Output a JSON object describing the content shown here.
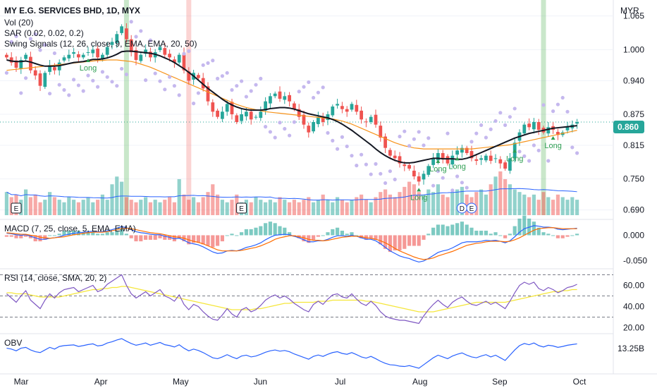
{
  "legend": {
    "title": "MY E.G. SERVICES BHD, 1D, MYX",
    "vol": "Vol (20)",
    "sar": "SAR (0.02, 0.02, 0.2)",
    "swing": "Swing Signals (12, 26, close, 9, EMA, EMA, 20, 50)",
    "macd": "MACD (7, 25, close, 5, EMA, EMA)",
    "rsi": "RSI (14, close, SMA, 20, 2)",
    "obv": "OBV"
  },
  "currency": "MYR",
  "last_price_tag": "0.860",
  "markers": {
    "earnings": "E",
    "dividend": "D",
    "long": "Long"
  },
  "colors": {
    "up": "#26a69a",
    "down": "#ef5350",
    "ema20": "#131722",
    "ema50": "#f7931a",
    "sar": "#c5b8ee",
    "vol_ma": "#2962ff",
    "macd": "#2962ff",
    "signal": "#ff6d00",
    "rsi": "#7e57c2",
    "rsi_ma": "#f5e63b",
    "obv": "#2962ff",
    "long": "#2e9e52",
    "green_band": "#4caf50",
    "red_band": "#ef5350"
  },
  "chart_data": {
    "type": "candlestick",
    "x_axis_labels": [
      "Mar",
      "Apr",
      "May",
      "Jun",
      "Jul",
      "Aug",
      "Sep",
      "Oct"
    ],
    "price_ticks": [
      "1.065",
      "1.000",
      "0.940",
      "0.875",
      "0.815",
      "0.750",
      "0.690"
    ],
    "price_range": [
      0.68,
      1.085
    ],
    "last_price": 0.86,
    "close_series": [
      0.985,
      0.975,
      0.965,
      0.98,
      0.99,
      0.96,
      0.95,
      0.93,
      0.955,
      0.97,
      0.96,
      0.975,
      0.985,
      0.99,
      0.995,
      0.985,
      0.99,
      0.995,
      1.0,
      0.985,
      0.99,
      1.005,
      1.015,
      1.03,
      1.045,
      1.02,
      0.995,
      0.98,
      0.99,
      1.0,
      0.985,
      0.995,
      1.005,
      0.99,
      0.985,
      0.975,
      0.99,
      0.96,
      0.94,
      0.955,
      0.945,
      0.925,
      0.9,
      0.88,
      0.87,
      0.88,
      0.895,
      0.875,
      0.86,
      0.875,
      0.88,
      0.865,
      0.87,
      0.88,
      0.9,
      0.91,
      0.915,
      0.905,
      0.91,
      0.9,
      0.885,
      0.87,
      0.855,
      0.84,
      0.86,
      0.87,
      0.86,
      0.875,
      0.89,
      0.895,
      0.885,
      0.88,
      0.895,
      0.88,
      0.865,
      0.86,
      0.87,
      0.855,
      0.83,
      0.81,
      0.795,
      0.79,
      0.78,
      0.775,
      0.77,
      0.755,
      0.745,
      0.76,
      0.775,
      0.79,
      0.8,
      0.79,
      0.78,
      0.795,
      0.805,
      0.81,
      0.8,
      0.79,
      0.785,
      0.79,
      0.795,
      0.785,
      0.79,
      0.78,
      0.77,
      0.79,
      0.82,
      0.84,
      0.855,
      0.85,
      0.86,
      0.845,
      0.84,
      0.85,
      0.845,
      0.835,
      0.84,
      0.85,
      0.855,
      0.86
    ],
    "ema20": [
      0.98,
      0.978,
      0.977,
      0.977,
      0.978,
      0.976,
      0.973,
      0.97,
      0.968,
      0.968,
      0.968,
      0.969,
      0.971,
      0.973,
      0.975,
      0.976,
      0.977,
      0.979,
      0.981,
      0.981,
      0.982,
      0.984,
      0.987,
      0.991,
      0.996,
      0.997,
      0.997,
      0.996,
      0.995,
      0.994,
      0.993,
      0.991,
      0.988,
      0.984,
      0.98,
      0.975,
      0.969,
      0.963,
      0.956,
      0.949,
      0.941,
      0.933,
      0.925,
      0.918,
      0.911,
      0.904,
      0.898,
      0.893,
      0.889,
      0.886,
      0.884,
      0.883,
      0.883,
      0.883,
      0.884,
      0.886,
      0.887,
      0.888,
      0.888,
      0.887,
      0.885,
      0.882,
      0.879,
      0.876,
      0.874,
      0.872,
      0.87,
      0.868,
      0.865,
      0.861,
      0.856,
      0.85,
      0.844,
      0.837,
      0.83,
      0.823,
      0.816,
      0.808,
      0.801,
      0.795,
      0.79,
      0.786,
      0.783,
      0.781,
      0.781,
      0.782,
      0.784,
      0.786,
      0.788,
      0.79,
      0.79,
      0.789,
      0.789,
      0.789,
      0.788,
      0.788,
      0.79,
      0.793,
      0.797,
      0.801,
      0.805,
      0.809,
      0.813,
      0.817,
      0.821,
      0.825,
      0.829,
      0.832,
      0.835,
      0.838,
      0.84,
      0.842,
      0.844,
      0.846,
      0.848,
      0.849,
      0.85,
      0.851,
      0.852,
      0.853
    ],
    "ema50": [
      0.96,
      0.961,
      0.962,
      0.963,
      0.964,
      0.965,
      0.966,
      0.967,
      0.968,
      0.969,
      0.97,
      0.971,
      0.972,
      0.973,
      0.974,
      0.975,
      0.976,
      0.977,
      0.978,
      0.979,
      0.979,
      0.98,
      0.98,
      0.98,
      0.979,
      0.978,
      0.977,
      0.975,
      0.972,
      0.969,
      0.966,
      0.962,
      0.958,
      0.954,
      0.95,
      0.946,
      0.942,
      0.938,
      0.934,
      0.93,
      0.926,
      0.922,
      0.918,
      0.914,
      0.91,
      0.906,
      0.902,
      0.898,
      0.894,
      0.891,
      0.888,
      0.886,
      0.884,
      0.882,
      0.88,
      0.879,
      0.878,
      0.877,
      0.876,
      0.875,
      0.874,
      0.873,
      0.872,
      0.871,
      0.87,
      0.869,
      0.868,
      0.867,
      0.866,
      0.864,
      0.862,
      0.859,
      0.856,
      0.852,
      0.848,
      0.844,
      0.84,
      0.836,
      0.832,
      0.828,
      0.824,
      0.82,
      0.817,
      0.814,
      0.812,
      0.81,
      0.809,
      0.808,
      0.808,
      0.808,
      0.808,
      0.808,
      0.808,
      0.808,
      0.808,
      0.808,
      0.808,
      0.808,
      0.809,
      0.81,
      0.811,
      0.812,
      0.813,
      0.814,
      0.815,
      0.816,
      0.818,
      0.82,
      0.822,
      0.824,
      0.826,
      0.828,
      0.83,
      0.832,
      0.834,
      0.836,
      0.838,
      0.84,
      0.842,
      0.844
    ],
    "volume": [
      0.9,
      0.7,
      0.8,
      0.6,
      1.0,
      0.7,
      0.8,
      0.5,
      0.6,
      0.9,
      0.7,
      0.6,
      0.5,
      0.7,
      0.6,
      0.5,
      0.6,
      0.7,
      0.5,
      0.6,
      0.8,
      0.6,
      1.2,
      1.5,
      1.3,
      0.7,
      0.6,
      0.5,
      0.6,
      0.7,
      0.5,
      0.6,
      0.5,
      0.6,
      0.7,
      0.5,
      1.4,
      0.8,
      0.6,
      0.7,
      0.5,
      0.7,
      0.9,
      1.2,
      0.8,
      0.6,
      0.5,
      0.6,
      0.8,
      0.5,
      0.6,
      0.5,
      0.7,
      0.6,
      0.5,
      0.6,
      0.5,
      0.7,
      0.6,
      0.5,
      0.6,
      0.5,
      0.6,
      0.7,
      0.5,
      0.6,
      0.8,
      0.6,
      0.5,
      0.7,
      0.6,
      0.5,
      0.6,
      0.7,
      0.8,
      0.6,
      0.5,
      0.7,
      0.9,
      1.0,
      0.8,
      0.7,
      0.9,
      1.1,
      1.3,
      1.2,
      0.9,
      0.8,
      1.0,
      0.9,
      1.2,
      0.8,
      0.7,
      0.9,
      1.0,
      1.1,
      0.8,
      0.7,
      0.9,
      1.0,
      0.8,
      1.2,
      1.5,
      1.7,
      1.4,
      1.2,
      1.0,
      0.9,
      0.8,
      0.7,
      0.8,
      0.6,
      0.9,
      0.7,
      0.6,
      0.8,
      0.7,
      0.6,
      0.7,
      0.6
    ],
    "macd_ticks": [
      "0.000",
      "-0.050"
    ],
    "macd_range": [
      -0.065,
      0.03
    ],
    "macd": [
      0.004,
      0.003,
      0.001,
      0.0,
      0.001,
      -0.002,
      -0.005,
      -0.008,
      -0.008,
      -0.006,
      -0.005,
      -0.003,
      0.0,
      0.002,
      0.004,
      0.005,
      0.006,
      0.007,
      0.008,
      0.007,
      0.007,
      0.009,
      0.011,
      0.014,
      0.017,
      0.015,
      0.011,
      0.007,
      0.005,
      0.004,
      0.002,
      0.001,
      0.001,
      -0.002,
      -0.004,
      -0.007,
      -0.006,
      -0.01,
      -0.015,
      -0.017,
      -0.019,
      -0.023,
      -0.028,
      -0.033,
      -0.036,
      -0.035,
      -0.031,
      -0.03,
      -0.031,
      -0.028,
      -0.024,
      -0.022,
      -0.019,
      -0.015,
      -0.009,
      -0.004,
      0.0,
      0.001,
      0.002,
      0.001,
      -0.002,
      -0.005,
      -0.009,
      -0.013,
      -0.013,
      -0.011,
      -0.011,
      -0.008,
      -0.004,
      -0.001,
      -0.001,
      -0.002,
      0.0,
      -0.002,
      -0.005,
      -0.008,
      -0.008,
      -0.011,
      -0.017,
      -0.024,
      -0.031,
      -0.036,
      -0.041,
      -0.044,
      -0.046,
      -0.05,
      -0.053,
      -0.051,
      -0.046,
      -0.04,
      -0.034,
      -0.031,
      -0.029,
      -0.025,
      -0.02,
      -0.015,
      -0.013,
      -0.013,
      -0.013,
      -0.012,
      -0.01,
      -0.011,
      -0.01,
      -0.012,
      -0.015,
      -0.011,
      -0.003,
      0.006,
      0.013,
      0.016,
      0.019,
      0.018,
      0.016,
      0.016,
      0.015,
      0.012,
      0.011,
      0.012,
      0.013,
      0.014
    ],
    "macd_signal": [
      0.005,
      0.004,
      0.003,
      0.002,
      0.002,
      0.0,
      -0.001,
      -0.004,
      -0.005,
      -0.006,
      -0.005,
      -0.004,
      -0.003,
      -0.001,
      0.001,
      0.002,
      0.004,
      0.005,
      0.006,
      0.006,
      0.006,
      0.007,
      0.009,
      0.011,
      0.013,
      0.014,
      0.013,
      0.011,
      0.009,
      0.007,
      0.005,
      0.004,
      0.003,
      0.001,
      -0.001,
      -0.003,
      -0.004,
      -0.006,
      -0.009,
      -0.012,
      -0.014,
      -0.017,
      -0.021,
      -0.025,
      -0.029,
      -0.031,
      -0.031,
      -0.031,
      -0.031,
      -0.03,
      -0.028,
      -0.026,
      -0.024,
      -0.021,
      -0.017,
      -0.013,
      -0.008,
      -0.005,
      -0.003,
      -0.001,
      -0.001,
      -0.003,
      -0.005,
      -0.008,
      -0.01,
      -0.01,
      -0.011,
      -0.01,
      -0.008,
      -0.006,
      -0.004,
      -0.003,
      -0.002,
      -0.002,
      -0.003,
      -0.005,
      -0.006,
      -0.008,
      -0.011,
      -0.015,
      -0.02,
      -0.026,
      -0.031,
      -0.035,
      -0.039,
      -0.043,
      -0.046,
      -0.048,
      -0.047,
      -0.045,
      -0.041,
      -0.038,
      -0.035,
      -0.032,
      -0.028,
      -0.024,
      -0.02,
      -0.018,
      -0.016,
      -0.015,
      -0.013,
      -0.012,
      -0.012,
      -0.012,
      -0.013,
      -0.012,
      -0.009,
      -0.005,
      0.0,
      0.005,
      0.01,
      0.013,
      0.014,
      0.015,
      0.015,
      0.014,
      0.013,
      0.013,
      0.013,
      0.013
    ],
    "rsi_ticks": [
      "60.00",
      "40.00",
      "20.00"
    ],
    "rsi_range": [
      15,
      75
    ],
    "rsi_bands": [
      70,
      50,
      30
    ],
    "rsi": [
      52,
      48,
      44,
      50,
      55,
      46,
      42,
      38,
      46,
      52,
      48,
      53,
      56,
      57,
      58,
      54,
      56,
      58,
      60,
      54,
      56,
      61,
      64,
      67,
      70,
      60,
      52,
      48,
      51,
      54,
      50,
      53,
      56,
      50,
      48,
      45,
      51,
      42,
      37,
      42,
      40,
      35,
      31,
      28,
      27,
      32,
      38,
      33,
      30,
      37,
      39,
      35,
      37,
      41,
      46,
      49,
      51,
      48,
      50,
      47,
      43,
      40,
      37,
      35,
      42,
      45,
      42,
      47,
      51,
      52,
      49,
      48,
      52,
      47,
      43,
      41,
      45,
      41,
      35,
      31,
      29,
      28,
      27,
      27,
      26,
      25,
      24,
      31,
      37,
      42,
      46,
      42,
      39,
      44,
      47,
      49,
      45,
      42,
      41,
      43,
      45,
      42,
      44,
      41,
      38,
      45,
      53,
      60,
      63,
      61,
      63,
      57,
      55,
      58,
      56,
      53,
      55,
      58,
      59,
      61
    ],
    "rsi_ma": [
      53,
      53,
      52,
      52,
      52,
      51,
      50,
      49,
      49,
      49,
      49,
      49,
      50,
      51,
      52,
      53,
      54,
      55,
      56,
      56,
      57,
      57,
      58,
      58,
      59,
      59,
      58,
      57,
      56,
      55,
      54,
      53,
      52,
      51,
      50,
      49,
      48,
      47,
      46,
      45,
      44,
      43,
      42,
      41,
      40,
      39,
      38,
      37,
      37,
      37,
      37,
      37,
      38,
      38,
      39,
      40,
      41,
      42,
      43,
      43,
      44,
      44,
      44,
      44,
      44,
      45,
      45,
      45,
      46,
      46,
      46,
      46,
      46,
      46,
      46,
      45,
      45,
      44,
      43,
      42,
      41,
      40,
      39,
      38,
      37,
      36,
      35,
      35,
      35,
      35,
      36,
      37,
      38,
      39,
      40,
      41,
      42,
      43,
      44,
      44,
      44,
      44,
      44,
      44,
      44,
      45,
      46,
      47,
      48,
      49,
      50,
      51,
      52,
      53,
      54,
      54,
      55,
      55,
      56,
      56
    ],
    "obv_ticks": [
      "13.25B"
    ],
    "obv": [
      0.45,
      0.4,
      0.3,
      0.45,
      0.5,
      0.35,
      0.25,
      0.2,
      0.35,
      0.5,
      0.4,
      0.55,
      0.6,
      0.62,
      0.64,
      0.55,
      0.6,
      0.66,
      0.7,
      0.58,
      0.62,
      0.75,
      0.82,
      0.92,
      1.0,
      0.85,
      0.72,
      0.62,
      0.68,
      0.75,
      0.62,
      0.7,
      0.78,
      0.65,
      0.6,
      0.52,
      0.65,
      0.45,
      0.3,
      0.4,
      0.32,
      0.2,
      0.05,
      -0.1,
      -0.15,
      -0.05,
      0.08,
      -0.05,
      -0.15,
      0.0,
      0.05,
      -0.05,
      0.0,
      0.1,
      0.22,
      0.3,
      0.35,
      0.28,
      0.32,
      0.25,
      0.12,
      0.02,
      -0.08,
      -0.18,
      -0.02,
      0.06,
      -0.02,
      0.1,
      0.2,
      0.25,
      0.15,
      0.1,
      0.2,
      0.08,
      -0.05,
      -0.12,
      -0.02,
      -0.15,
      -0.3,
      -0.42,
      -0.5,
      -0.52,
      -0.58,
      -0.6,
      -0.55,
      -0.62,
      -0.7,
      -0.5,
      -0.3,
      -0.1,
      0.05,
      -0.05,
      -0.15,
      0.0,
      0.1,
      0.18,
      0.05,
      -0.05,
      -0.1,
      0.0,
      0.08,
      -0.05,
      0.05,
      -0.1,
      -0.25,
      0.05,
      0.35,
      0.6,
      0.72,
      0.65,
      0.75,
      0.6,
      0.52,
      0.62,
      0.58,
      0.5,
      0.55,
      0.62,
      0.66,
      0.7
    ],
    "green_bands_at_index": [
      25,
      112
    ],
    "red_bands_at_index": [
      38
    ],
    "long_signal_indices": [
      17,
      86,
      90,
      94,
      106,
      114
    ],
    "earnings_indices": [
      2,
      49
    ],
    "dividend_index": 95,
    "earnings_index_2": 97
  }
}
